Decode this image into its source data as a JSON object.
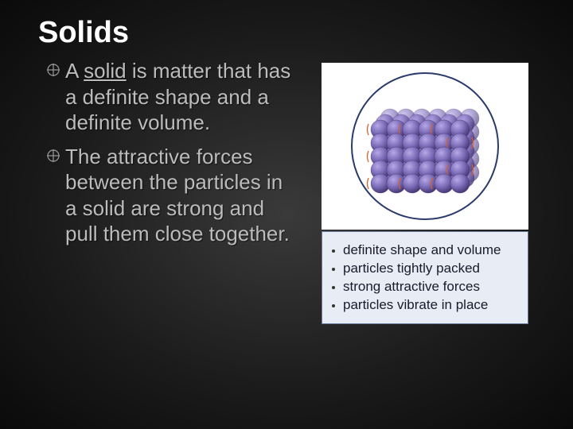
{
  "title": "Solids",
  "bullets": [
    {
      "prefix": "A ",
      "underlined": "solid",
      "rest": " is matter that has a definite shape and a definite volume."
    },
    {
      "prefix": "",
      "underlined": "",
      "rest": "The attractive forces between the particles in a solid are strong and pull them close together."
    }
  ],
  "properties": [
    "definite shape and volume",
    "particles tightly packed",
    "strong attractive forces",
    "particles vibrate in place"
  ],
  "diagram": {
    "container_border": "#2a3a6a",
    "sphere_base": "#7b6db8",
    "sphere_light": "#b8a8e8",
    "sphere_dark": "#4a3a78",
    "vibrate_color": "#d8602a",
    "grid_size": 6,
    "rows": 5
  },
  "colors": {
    "title": "#ffffff",
    "body_text": "#bcbcbc",
    "prop_bg": "#e8ecf5",
    "prop_border": "#6a7a9a",
    "prop_text": "#1a1a2a"
  },
  "fonts": {
    "title_size": 38,
    "body_size": 26,
    "prop_size": 17
  }
}
